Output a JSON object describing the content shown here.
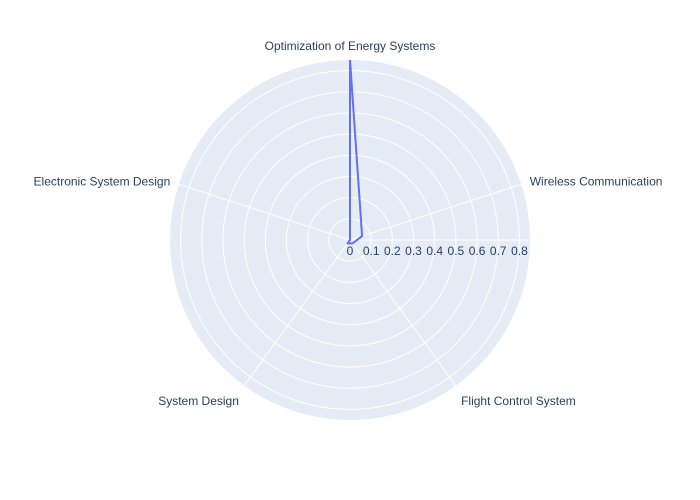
{
  "chart_data": {
    "type": "radar",
    "categories": [
      "Optimization of Energy Systems",
      "Wireless Communication",
      "Flight Control System",
      "System Design",
      "Electronic System Design"
    ],
    "series": [
      {
        "values": [
          0.85,
          0.06,
          0.02,
          0.02,
          0.0
        ]
      }
    ],
    "radial_range": [
      0,
      0.85
    ],
    "radial_ticks": [
      0,
      0.1,
      0.2,
      0.3,
      0.4,
      0.5,
      0.6,
      0.7,
      0.8
    ],
    "radial_tick_labels": [
      "0",
      "0.1",
      "0.2",
      "0.3",
      "0.4",
      "0.5",
      "0.6",
      "0.7",
      "0.8"
    ],
    "grid": true,
    "colors": {
      "background": "#e5ecf6",
      "grid": "#ffffff",
      "series": "#636efa",
      "text": "#2a3f5f"
    }
  }
}
